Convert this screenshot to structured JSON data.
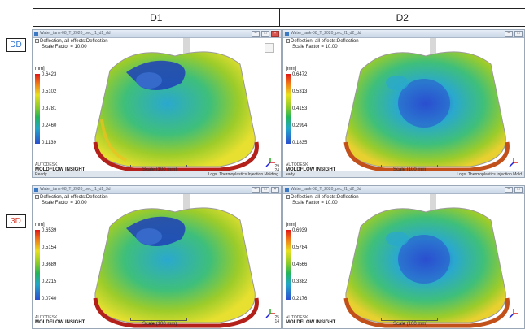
{
  "header": {
    "col1": "D1",
    "col2": "D2"
  },
  "rows": {
    "dd": "DD",
    "3d": "3D"
  },
  "panels": [
    {
      "title": "Water_tank-08_T_2020_pvc_f1_d1_dd",
      "result": "Deflection, all effects:Deflection",
      "scale_factor": "Scale Factor = 10.00",
      "unit": "mm]",
      "legend": [
        "0.6423",
        "0.5102",
        "0.3781",
        "0.2460",
        "0.1139"
      ],
      "brand_1": "AUTODESK",
      "brand_2": "MOLDFLOW INSIGHT",
      "scale": "Scale (100 mm)",
      "axis": [
        "29",
        "24"
      ],
      "status_left": "Ready",
      "status_right": "Thermoplastics Injection Molding",
      "logs": "Logs"
    },
    {
      "title": "Water_tank-08_T_2020_pvc_f1_d2_dd",
      "result": "Deflection, all effects:Deflection",
      "scale_factor": "Scale Factor = 10.00",
      "unit": "[mm]",
      "legend": [
        "0.6472",
        "0.5313",
        "0.4153",
        "0.2994",
        "0.1835"
      ],
      "brand_1": "AUTODESK",
      "brand_2": "MOLDFLOW INSIGHT",
      "scale": "Scale (100 mm)",
      "axis": [
        "",
        ""
      ],
      "status_left": "eady",
      "status_right": "Thermoplastics Injection Mold",
      "logs": "Logs"
    },
    {
      "title": "Water_tank-08_T_2020_pvc_f1_d1_3d",
      "result": "Deflection, all effects:Deflection",
      "scale_factor": "Scale Factor = 10.00",
      "unit": "mm]",
      "legend": [
        "0.6539",
        "0.5154",
        "0.3689",
        "0.2215",
        "0.0740"
      ],
      "brand_1": "AUTODESK",
      "brand_2": "MOLDFLOW INSIGHT",
      "scale": "Scale (100 mm)",
      "axis": [
        "25",
        "14"
      ],
      "status_left": "",
      "status_right": "",
      "logs": ""
    },
    {
      "title": "Water_tank-08_T_2020_pvc_f1_d2_3d",
      "result": "Deflection, all effects:Deflection",
      "scale_factor": "Scale Factor = 10.00",
      "unit": "[mm]",
      "legend": [
        "0.6939",
        "0.5784",
        "0.4566",
        "0.3382",
        "0.2176"
      ],
      "brand_1": "AUTODESK",
      "brand_2": "MOLDFLOW INSIGHT",
      "scale": "Scale (100 mm)",
      "axis": [
        "",
        ""
      ],
      "status_left": "",
      "status_right": "",
      "logs": ""
    }
  ],
  "colors": {
    "legend_max": "#e01818",
    "legend_min": "#2a4fd0",
    "dd_tag": "#2a6fd0",
    "3d_tag": "#d03a2a"
  }
}
